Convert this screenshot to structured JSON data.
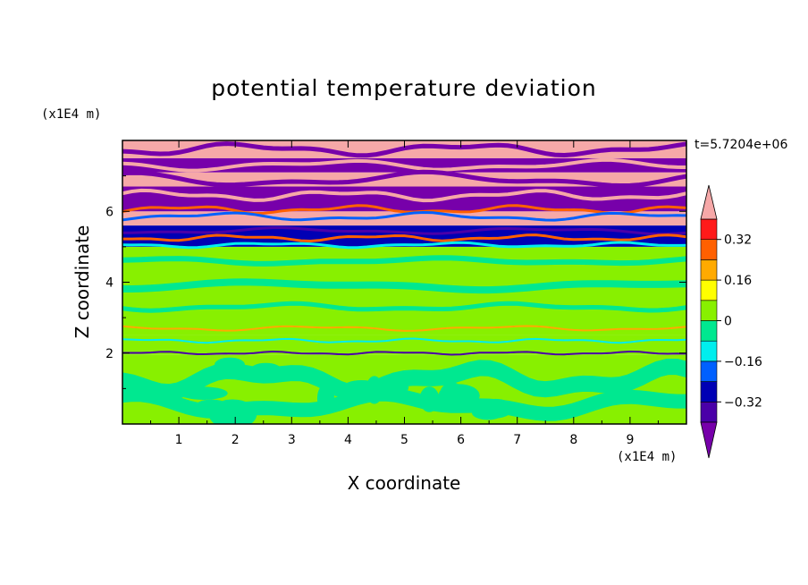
{
  "chart_data": {
    "type": "heatmap",
    "title": "potential temperature deviation",
    "xlabel": "X coordinate",
    "ylabel": "Z coordinate",
    "x_units": "(x1E4 m)",
    "y_units": "(x1E4 m)",
    "time_label": "t=5.7204e+06",
    "xlim": [
      0,
      10
    ],
    "ylim": [
      0,
      8
    ],
    "x_ticks": [
      "1",
      "2",
      "3",
      "4",
      "5",
      "6",
      "7",
      "8",
      "9"
    ],
    "y_ticks": [
      "2",
      "4",
      "6"
    ],
    "colorbar": {
      "levels": [
        -0.4,
        -0.32,
        -0.24,
        -0.16,
        -0.08,
        0,
        0.08,
        0.16,
        0.24,
        0.32,
        0.4
      ],
      "tick_labels": [
        "0.32",
        "0.16",
        "0",
        "−0.16",
        "−0.32"
      ],
      "tick_values": [
        0.32,
        0.16,
        0,
        -0.16,
        -0.32
      ],
      "colors": [
        "#7700aa",
        "#4a00a8",
        "#0000b4",
        "#0060ff",
        "#00eeee",
        "#00e890",
        "#88f000",
        "#ffff00",
        "#ffaa00",
        "#ff6000",
        "#ff1a1a",
        "#f6a8a8"
      ]
    },
    "bands": [
      {
        "z": [
          0.0,
          1.95
        ],
        "value": 0.04
      },
      {
        "z": [
          1.95,
          2.5
        ],
        "value": 0.0
      },
      {
        "z": [
          2.5,
          5.0
        ],
        "value": 0.03
      },
      {
        "z": [
          5.0,
          5.6
        ],
        "value": -0.25
      },
      {
        "z": [
          5.6,
          6.0
        ],
        "value": 0.42
      },
      {
        "z": [
          6.0,
          6.7
        ],
        "value": -0.43
      },
      {
        "z": [
          6.7,
          7.1
        ],
        "value": 0.42
      },
      {
        "z": [
          7.1,
          7.5
        ],
        "value": -0.43
      },
      {
        "z": [
          7.5,
          8.0
        ],
        "value": 0.42
      }
    ]
  }
}
